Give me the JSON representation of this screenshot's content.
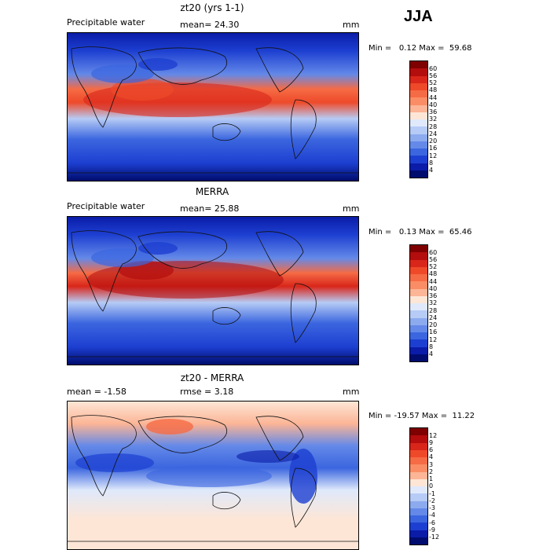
{
  "season": "JJA",
  "panels": [
    {
      "title": "zt20 (yrs 1-1)",
      "left_label": "Precipitable water",
      "center_label": "mean=  24.30",
      "unit": "mm",
      "stats": "Min =   0.12 Max =  59.68",
      "colorbar": {
        "labels": [
          "60",
          "56",
          "52",
          "48",
          "44",
          "40",
          "36",
          "32",
          "28",
          "24",
          "20",
          "16",
          "12",
          "8",
          "4"
        ],
        "colors": [
          "#7f0000",
          "#b30d0d",
          "#d9261a",
          "#ee4a2a",
          "#f56b45",
          "#fa8d65",
          "#fcb596",
          "#fde6d6",
          "#dfe9fb",
          "#b6cbf5",
          "#8caaee",
          "#6489e8",
          "#3b66df",
          "#1d3fd1",
          "#0a1ca8",
          "#000c6e"
        ]
      }
    },
    {
      "title": "MERRA",
      "left_label": "Precipitable water",
      "center_label": "mean=  25.88",
      "unit": "mm",
      "stats": "Min =   0.13 Max =  65.46",
      "colorbar": {
        "labels": [
          "60",
          "56",
          "52",
          "48",
          "44",
          "40",
          "36",
          "32",
          "28",
          "24",
          "20",
          "16",
          "12",
          "8",
          "4"
        ],
        "colors": [
          "#7f0000",
          "#b30d0d",
          "#d9261a",
          "#ee4a2a",
          "#f56b45",
          "#fa8d65",
          "#fcb596",
          "#fde6d6",
          "#dfe9fb",
          "#b6cbf5",
          "#8caaee",
          "#6489e8",
          "#3b66df",
          "#1d3fd1",
          "#0a1ca8",
          "#000c6e"
        ]
      }
    },
    {
      "title": "zt20 - MERRA",
      "left_label": "mean =  -1.58",
      "center_label": "rmse =   3.18",
      "unit": "mm",
      "stats": "Min = -19.57 Max =  11.22",
      "colorbar": {
        "labels": [
          "12",
          "9",
          "6",
          "4",
          "3",
          "2",
          "1",
          "0",
          "-1",
          "-2",
          "-3",
          "-4",
          "-6",
          "-9",
          "-12"
        ],
        "colors": [
          "#7f0000",
          "#b30d0d",
          "#d9261a",
          "#ee4a2a",
          "#f56b45",
          "#fa8d65",
          "#fcb596",
          "#fde6d6",
          "#dfe9fb",
          "#b6cbf5",
          "#8caaee",
          "#6489e8",
          "#3b66df",
          "#1d3fd1",
          "#0a1ca8",
          "#000c6e"
        ]
      }
    }
  ]
}
